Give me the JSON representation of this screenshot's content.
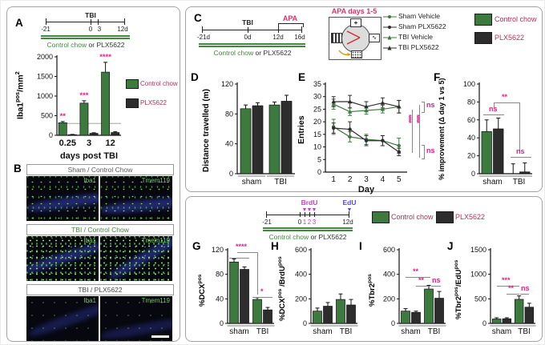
{
  "colors": {
    "control_chow_green": "#3d7a3e",
    "plx5622_dark": "#2d2d2d",
    "significance_pink": "#e0218a",
    "legend_crimson": "#b0305c",
    "timeline_green": "#3f8a3b",
    "brdu_magenta": "#c43fc4",
    "edu_violet": "#5a48d0",
    "micro_green": "#6fcf5a",
    "micro_blue": "#262d7e"
  },
  "panels": {
    "a": {
      "label": "A",
      "timeline": {
        "event": "TBI",
        "ticks": [
          "-21",
          "0",
          "3",
          "12d"
        ],
        "diet_green": "Control chow",
        "diet_join": "or",
        "diet_black": "PLX5622"
      },
      "ylabel": {
        "base": "Iba1",
        "sup": "pos",
        "mid": "/mm",
        "sup2": "2"
      },
      "legend": [
        {
          "label": "Control chow"
        },
        {
          "label": "PLX5622"
        }
      ]
    },
    "b": {
      "label": "B",
      "rows": [
        {
          "title": "Sham / Control Chow",
          "left_tag": "Iba1",
          "right_tag": "Tmem119"
        },
        {
          "title": "TBI / Control Chow",
          "left_tag": "Iba1",
          "right_tag": "Tmem119"
        },
        {
          "title": "TBI / PLX5622",
          "left_tag": "Iba1",
          "right_tag": "Tmem119"
        }
      ]
    },
    "c": {
      "label": "C",
      "timeline": {
        "event": "TBI",
        "phase": "APA",
        "ticks": [
          "-21d",
          "0d",
          "12d",
          "16d"
        ],
        "diet_green": "Control chow",
        "diet_join": "or",
        "diet_black": "PLX5622"
      },
      "arena_title": "APA days 1-5",
      "line_legend": [
        "Sham Vehicle",
        "Sham PLX5622",
        "TBI Vehicle",
        "TBI PLX5622"
      ],
      "bar_legend": [
        "Control chow",
        "PLX5622"
      ]
    },
    "d": {
      "label": "D",
      "ylabel": "Distance travelled (m)"
    },
    "e": {
      "label": "E",
      "ylabel": "Entries"
    },
    "f": {
      "label": "F",
      "ylabel": "% improvement (Δ day 1 vs 5)"
    },
    "g": {
      "label": "G",
      "ylabel": {
        "base": "%DCX",
        "sup": "pos"
      }
    },
    "h": {
      "label": "H",
      "ylabel": {
        "base": "%DCX",
        "sup": "pos",
        "mid": " /BrdU",
        "sup2": "pos"
      }
    },
    "i": {
      "label": "I",
      "ylabel": {
        "base": "%Tbr2",
        "sup": "pos"
      }
    },
    "j": {
      "label": "J",
      "ylabel": {
        "base": "%Tbr2",
        "sup": "pos",
        "mid": "/EdU",
        "sup2": "pos"
      }
    },
    "bottom_timeline": {
      "brdu": "BrdU",
      "edu": "EdU",
      "ticks": [
        "-21",
        "0",
        "1",
        "2",
        "3",
        "12d"
      ],
      "diet_green": "Control chow",
      "diet_join": "or",
      "diet_black": "PLX5622"
    },
    "bottom_legend": [
      "Control chow",
      "PLX5622"
    ]
  },
  "chart_data": [
    {
      "id": "A",
      "type": "bar",
      "ylabel": "Iba1pos/mm2",
      "xlabel": "days post TBI",
      "ylim": [
        0,
        2000
      ],
      "yticks": [
        0,
        500,
        1000,
        1500,
        2000
      ],
      "categories": [
        "0.25",
        "3",
        "12"
      ],
      "series": [
        {
          "name": "Control chow",
          "color": "#3d7a3e",
          "values": [
            320,
            820,
            1610
          ],
          "errors": [
            30,
            60,
            250
          ]
        },
        {
          "name": "PLX5622",
          "color": "#2d2d2d",
          "values": [
            15,
            50,
            70
          ],
          "errors": [
            8,
            15,
            20
          ]
        }
      ],
      "baseline": 300,
      "sig_above": [
        "**",
        "***",
        "****"
      ]
    },
    {
      "id": "D",
      "type": "bar",
      "ylabel": "Distance travelled (m)",
      "ylim": [
        0,
        120
      ],
      "yticks": [
        0,
        40,
        80,
        120
      ],
      "categories": [
        "sham",
        "TBI"
      ],
      "series": [
        {
          "name": "Control chow",
          "color": "#3d7a3e",
          "values": [
            87,
            92
          ],
          "errors": [
            5,
            4
          ]
        },
        {
          "name": "PLX5622",
          "color": "#2d2d2d",
          "values": [
            91,
            97
          ],
          "errors": [
            4,
            8
          ]
        }
      ]
    },
    {
      "id": "E",
      "type": "line",
      "ylabel": "Entries",
      "xlabel": "Day",
      "ylim": [
        0,
        35
      ],
      "yticks": [
        0,
        5,
        10,
        15,
        20,
        25,
        30,
        35
      ],
      "x": [
        1,
        2,
        3,
        4,
        5
      ],
      "series": [
        {
          "name": "Sham Vehicle",
          "color": "#3d7a3e",
          "marker": "circle",
          "values": [
            18,
            14,
            13,
            12.5,
            10.5
          ],
          "errors": [
            3,
            2,
            2,
            2,
            3
          ]
        },
        {
          "name": "Sham PLX5622",
          "color": "#2d2d2d",
          "marker": "circle",
          "values": [
            17.5,
            17,
            12.5,
            12.5,
            8
          ],
          "errors": [
            2,
            3,
            2,
            2,
            1.5
          ]
        },
        {
          "name": "TBI Vehicle",
          "color": "#3d7a3e",
          "marker": "triangle",
          "values": [
            27,
            24,
            24.5,
            25,
            26
          ],
          "errors": [
            2,
            1.5,
            1.5,
            1.5,
            2.5
          ]
        },
        {
          "name": "TBI PLX5622",
          "color": "#2d2d2d",
          "marker": "triangle",
          "values": [
            28,
            28,
            26,
            27.5,
            26
          ],
          "errors": [
            2,
            2.5,
            2,
            2,
            2.5
          ]
        }
      ],
      "significance": {
        "top": "ns",
        "mid1": "****",
        "mid2": "****",
        "bottom": "ns"
      }
    },
    {
      "id": "F",
      "type": "bar",
      "ylabel": "% improvement (Δ day 1 vs 5)",
      "ylim": [
        0,
        100
      ],
      "yticks": [
        0,
        20,
        40,
        60,
        80,
        100
      ],
      "categories": [
        "sham",
        "TBI"
      ],
      "series": [
        {
          "name": "Control chow",
          "color": "#3d7a3e",
          "values": [
            47,
            0
          ],
          "errors": [
            13,
            11
          ]
        },
        {
          "name": "PLX5622",
          "color": "#2d2d2d",
          "values": [
            50,
            2
          ],
          "errors": [
            12,
            10
          ]
        }
      ],
      "significance": {
        "sham_pair": "ns",
        "main": "**",
        "tbi_pair": "ns"
      }
    },
    {
      "id": "G",
      "type": "bar",
      "ylabel": "%DCXpos",
      "ylim": [
        0,
        120
      ],
      "yticks": [
        0,
        40,
        80,
        120
      ],
      "categories": [
        "sham",
        "TBI"
      ],
      "series": [
        {
          "name": "Control chow",
          "color": "#3d7a3e",
          "values": [
            100,
            39
          ],
          "errors": [
            5,
            3
          ]
        },
        {
          "name": "PLX5622",
          "color": "#2d2d2d",
          "values": [
            88,
            22
          ],
          "errors": [
            4,
            4
          ]
        }
      ],
      "significance": {
        "main": "****",
        "tbi_pair": "*"
      }
    },
    {
      "id": "H",
      "type": "bar",
      "ylabel": "%DCXpos /BrdUpos",
      "ylim": [
        0,
        600
      ],
      "yticks": [
        0,
        200,
        400,
        600
      ],
      "categories": [
        "sham",
        "TBI"
      ],
      "series": [
        {
          "name": "Control chow",
          "color": "#3d7a3e",
          "values": [
            100,
            195
          ],
          "errors": [
            25,
            45
          ]
        },
        {
          "name": "PLX5622",
          "color": "#2d2d2d",
          "values": [
            140,
            150
          ],
          "errors": [
            30,
            45
          ]
        }
      ]
    },
    {
      "id": "I",
      "type": "bar",
      "ylabel": "%Tbr2pos",
      "ylim": [
        0,
        600
      ],
      "yticks": [
        0,
        200,
        400,
        600
      ],
      "categories": [
        "sham",
        "TBI"
      ],
      "series": [
        {
          "name": "Control chow",
          "color": "#3d7a3e",
          "values": [
            100,
            280
          ],
          "errors": [
            20,
            30
          ]
        },
        {
          "name": "PLX5622",
          "color": "#2d2d2d",
          "values": [
            90,
            205
          ],
          "errors": [
            10,
            55
          ]
        }
      ],
      "significance": {
        "top": "**",
        "mid": "**",
        "tbi_pair": "ns"
      }
    },
    {
      "id": "J",
      "type": "bar",
      "ylabel": "%Tbr2pos/EdUpos",
      "ylim": [
        0,
        1500
      ],
      "yticks": [
        0,
        500,
        1000,
        1500
      ],
      "categories": [
        "sham",
        "TBI"
      ],
      "series": [
        {
          "name": "Control chow",
          "color": "#3d7a3e",
          "values": [
            90,
            490
          ],
          "errors": [
            25,
            70
          ]
        },
        {
          "name": "PLX5622",
          "color": "#2d2d2d",
          "values": [
            95,
            330
          ],
          "errors": [
            20,
            80
          ]
        }
      ],
      "significance": {
        "top": "***",
        "mid": "**",
        "tbi_pair": "ns"
      }
    }
  ]
}
